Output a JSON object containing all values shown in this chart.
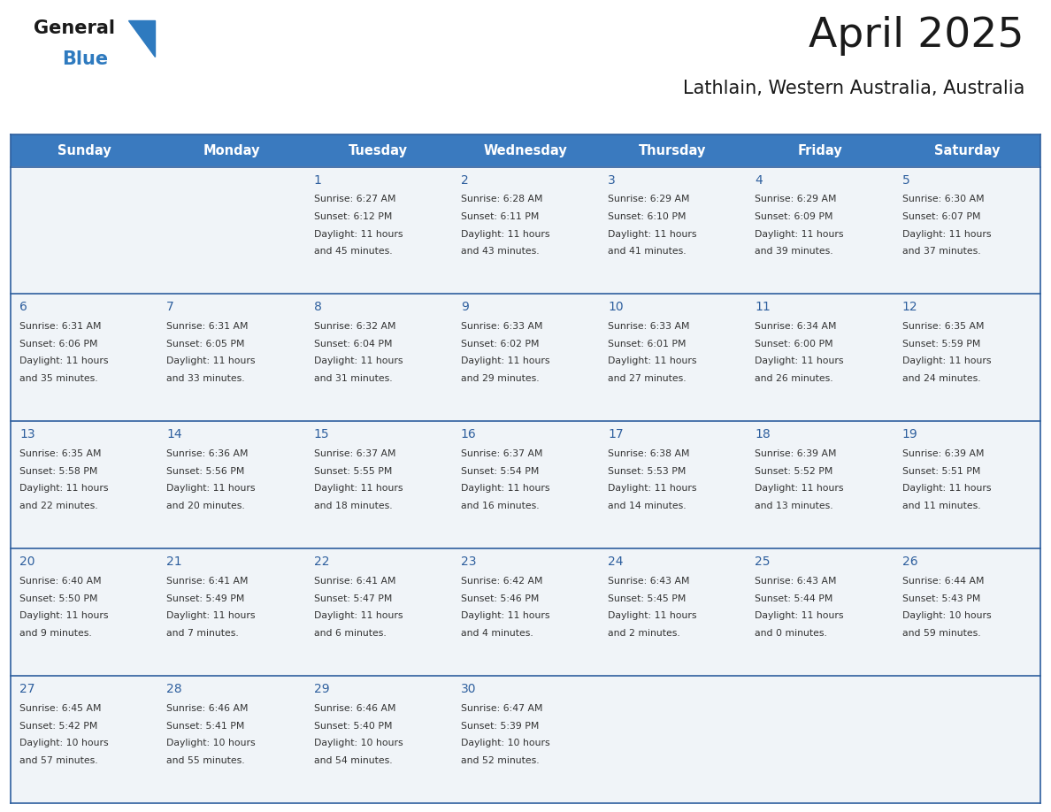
{
  "title": "April 2025",
  "subtitle": "Lathlain, Western Australia, Australia",
  "header_color": "#3a7abf",
  "header_text_color": "#ffffff",
  "cell_bg": "#f0f4f8",
  "cell_bg_last": "#f0f4f8",
  "row_border_color": "#2e5f9e",
  "outer_border_color": "#2e5f9e",
  "day_num_color": "#2e5f9e",
  "text_color": "#333333",
  "logo_black": "#1a1a1a",
  "logo_blue": "#2e7abf",
  "days_of_week": [
    "Sunday",
    "Monday",
    "Tuesday",
    "Wednesday",
    "Thursday",
    "Friday",
    "Saturday"
  ],
  "weeks": [
    [
      {
        "day": "",
        "sunrise": "",
        "sunset": "",
        "daylight": ""
      },
      {
        "day": "",
        "sunrise": "",
        "sunset": "",
        "daylight": ""
      },
      {
        "day": "1",
        "sunrise": "Sunrise: 6:27 AM",
        "sunset": "Sunset: 6:12 PM",
        "daylight": "Daylight: 11 hours\nand 45 minutes."
      },
      {
        "day": "2",
        "sunrise": "Sunrise: 6:28 AM",
        "sunset": "Sunset: 6:11 PM",
        "daylight": "Daylight: 11 hours\nand 43 minutes."
      },
      {
        "day": "3",
        "sunrise": "Sunrise: 6:29 AM",
        "sunset": "Sunset: 6:10 PM",
        "daylight": "Daylight: 11 hours\nand 41 minutes."
      },
      {
        "day": "4",
        "sunrise": "Sunrise: 6:29 AM",
        "sunset": "Sunset: 6:09 PM",
        "daylight": "Daylight: 11 hours\nand 39 minutes."
      },
      {
        "day": "5",
        "sunrise": "Sunrise: 6:30 AM",
        "sunset": "Sunset: 6:07 PM",
        "daylight": "Daylight: 11 hours\nand 37 minutes."
      }
    ],
    [
      {
        "day": "6",
        "sunrise": "Sunrise: 6:31 AM",
        "sunset": "Sunset: 6:06 PM",
        "daylight": "Daylight: 11 hours\nand 35 minutes."
      },
      {
        "day": "7",
        "sunrise": "Sunrise: 6:31 AM",
        "sunset": "Sunset: 6:05 PM",
        "daylight": "Daylight: 11 hours\nand 33 minutes."
      },
      {
        "day": "8",
        "sunrise": "Sunrise: 6:32 AM",
        "sunset": "Sunset: 6:04 PM",
        "daylight": "Daylight: 11 hours\nand 31 minutes."
      },
      {
        "day": "9",
        "sunrise": "Sunrise: 6:33 AM",
        "sunset": "Sunset: 6:02 PM",
        "daylight": "Daylight: 11 hours\nand 29 minutes."
      },
      {
        "day": "10",
        "sunrise": "Sunrise: 6:33 AM",
        "sunset": "Sunset: 6:01 PM",
        "daylight": "Daylight: 11 hours\nand 27 minutes."
      },
      {
        "day": "11",
        "sunrise": "Sunrise: 6:34 AM",
        "sunset": "Sunset: 6:00 PM",
        "daylight": "Daylight: 11 hours\nand 26 minutes."
      },
      {
        "day": "12",
        "sunrise": "Sunrise: 6:35 AM",
        "sunset": "Sunset: 5:59 PM",
        "daylight": "Daylight: 11 hours\nand 24 minutes."
      }
    ],
    [
      {
        "day": "13",
        "sunrise": "Sunrise: 6:35 AM",
        "sunset": "Sunset: 5:58 PM",
        "daylight": "Daylight: 11 hours\nand 22 minutes."
      },
      {
        "day": "14",
        "sunrise": "Sunrise: 6:36 AM",
        "sunset": "Sunset: 5:56 PM",
        "daylight": "Daylight: 11 hours\nand 20 minutes."
      },
      {
        "day": "15",
        "sunrise": "Sunrise: 6:37 AM",
        "sunset": "Sunset: 5:55 PM",
        "daylight": "Daylight: 11 hours\nand 18 minutes."
      },
      {
        "day": "16",
        "sunrise": "Sunrise: 6:37 AM",
        "sunset": "Sunset: 5:54 PM",
        "daylight": "Daylight: 11 hours\nand 16 minutes."
      },
      {
        "day": "17",
        "sunrise": "Sunrise: 6:38 AM",
        "sunset": "Sunset: 5:53 PM",
        "daylight": "Daylight: 11 hours\nand 14 minutes."
      },
      {
        "day": "18",
        "sunrise": "Sunrise: 6:39 AM",
        "sunset": "Sunset: 5:52 PM",
        "daylight": "Daylight: 11 hours\nand 13 minutes."
      },
      {
        "day": "19",
        "sunrise": "Sunrise: 6:39 AM",
        "sunset": "Sunset: 5:51 PM",
        "daylight": "Daylight: 11 hours\nand 11 minutes."
      }
    ],
    [
      {
        "day": "20",
        "sunrise": "Sunrise: 6:40 AM",
        "sunset": "Sunset: 5:50 PM",
        "daylight": "Daylight: 11 hours\nand 9 minutes."
      },
      {
        "day": "21",
        "sunrise": "Sunrise: 6:41 AM",
        "sunset": "Sunset: 5:49 PM",
        "daylight": "Daylight: 11 hours\nand 7 minutes."
      },
      {
        "day": "22",
        "sunrise": "Sunrise: 6:41 AM",
        "sunset": "Sunset: 5:47 PM",
        "daylight": "Daylight: 11 hours\nand 6 minutes."
      },
      {
        "day": "23",
        "sunrise": "Sunrise: 6:42 AM",
        "sunset": "Sunset: 5:46 PM",
        "daylight": "Daylight: 11 hours\nand 4 minutes."
      },
      {
        "day": "24",
        "sunrise": "Sunrise: 6:43 AM",
        "sunset": "Sunset: 5:45 PM",
        "daylight": "Daylight: 11 hours\nand 2 minutes."
      },
      {
        "day": "25",
        "sunrise": "Sunrise: 6:43 AM",
        "sunset": "Sunset: 5:44 PM",
        "daylight": "Daylight: 11 hours\nand 0 minutes."
      },
      {
        "day": "26",
        "sunrise": "Sunrise: 6:44 AM",
        "sunset": "Sunset: 5:43 PM",
        "daylight": "Daylight: 10 hours\nand 59 minutes."
      }
    ],
    [
      {
        "day": "27",
        "sunrise": "Sunrise: 6:45 AM",
        "sunset": "Sunset: 5:42 PM",
        "daylight": "Daylight: 10 hours\nand 57 minutes."
      },
      {
        "day": "28",
        "sunrise": "Sunrise: 6:46 AM",
        "sunset": "Sunset: 5:41 PM",
        "daylight": "Daylight: 10 hours\nand 55 minutes."
      },
      {
        "day": "29",
        "sunrise": "Sunrise: 6:46 AM",
        "sunset": "Sunset: 5:40 PM",
        "daylight": "Daylight: 10 hours\nand 54 minutes."
      },
      {
        "day": "30",
        "sunrise": "Sunrise: 6:47 AM",
        "sunset": "Sunset: 5:39 PM",
        "daylight": "Daylight: 10 hours\nand 52 minutes."
      },
      {
        "day": "",
        "sunrise": "",
        "sunset": "",
        "daylight": ""
      },
      {
        "day": "",
        "sunrise": "",
        "sunset": "",
        "daylight": ""
      },
      {
        "day": "",
        "sunrise": "",
        "sunset": "",
        "daylight": ""
      }
    ]
  ]
}
